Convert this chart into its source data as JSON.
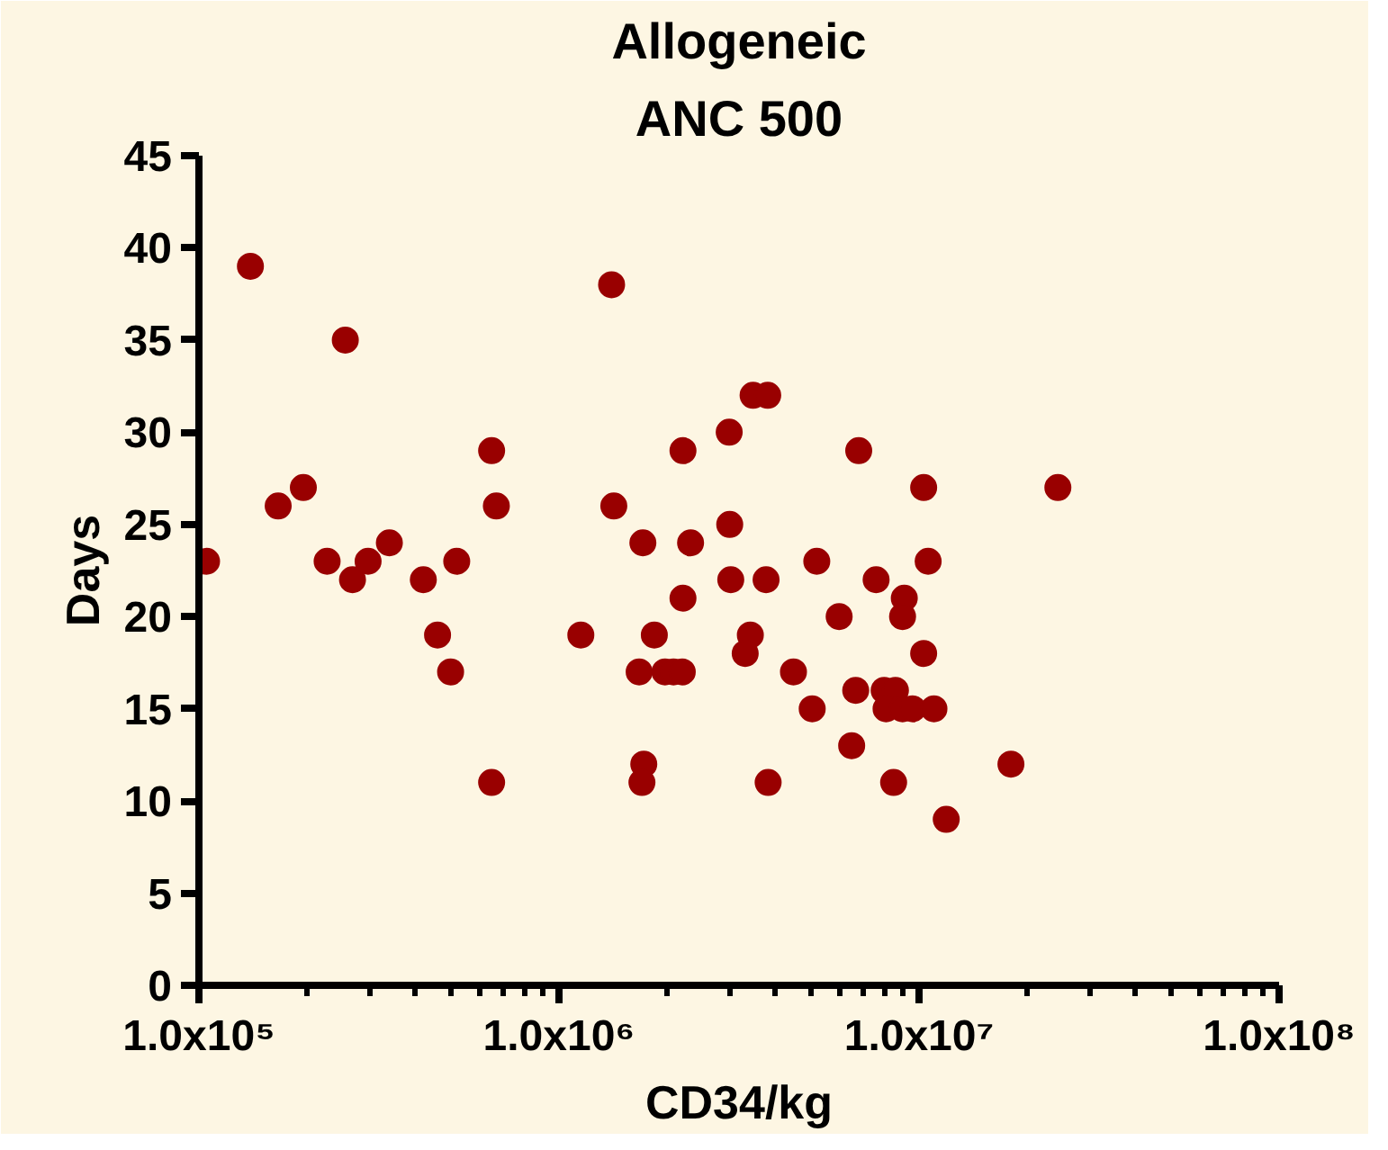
{
  "chart_data": {
    "type": "scatter",
    "title": "Allogeneic",
    "subtitle": "ANC 500",
    "xlabel": "CD34/kg",
    "ylabel": "Days",
    "log": "x",
    "grid": false,
    "marker": "circle",
    "xlim": [
      100000,
      100000000
    ],
    "xticks": [
      {
        "value": 100000,
        "label": "1.0x10⁵"
      },
      {
        "value": 1000000,
        "label": "1.0x10⁶"
      },
      {
        "value": 10000000,
        "label": "1.0x10⁷"
      },
      {
        "value": 100000000,
        "label": "1.0x10⁸"
      }
    ],
    "ylim": [
      0,
      45
    ],
    "yticks": [
      0,
      5,
      10,
      15,
      20,
      25,
      30,
      35,
      40,
      45
    ],
    "series": [
      {
        "color": "#990000",
        "x": [
          139000,
          255000,
          650000,
          670000,
          166000,
          195000,
          105000,
          227000,
          267000,
          295000,
          338000,
          420000,
          520000,
          460000,
          500000,
          650000,
          1400000,
          3460000,
          3800000,
          2970000,
          2210000,
          6800000,
          1420000,
          1710000,
          2320000,
          2980000,
          5200000,
          2210000,
          3000000,
          3760000,
          7600000,
          6000000,
          1150000,
          1840000,
          3400000,
          3290000,
          1670000,
          1970000,
          2080000,
          2200000,
          4480000,
          5050000,
          6670000,
          6500000,
          1720000,
          1700000,
          3810000,
          10300000,
          24300000,
          10600000,
          9100000,
          9000000,
          10300000,
          8000000,
          8600000,
          8100000,
          9000000,
          9600000,
          11000000,
          8500000,
          18000000,
          11900000
        ],
        "values": [
          39,
          35,
          29,
          26,
          26,
          27,
          23,
          23,
          22,
          23,
          24,
          22,
          23,
          19,
          17,
          11,
          38,
          32,
          32,
          30,
          29,
          29,
          26,
          24,
          24,
          25,
          23,
          21,
          22,
          22,
          22,
          20,
          19,
          19,
          19,
          18,
          17,
          17,
          17,
          17,
          17,
          15,
          16,
          13,
          12,
          11,
          11,
          27,
          27,
          23,
          21,
          20,
          18,
          16,
          16,
          15,
          15,
          15,
          15,
          11,
          12,
          9
        ]
      }
    ]
  }
}
